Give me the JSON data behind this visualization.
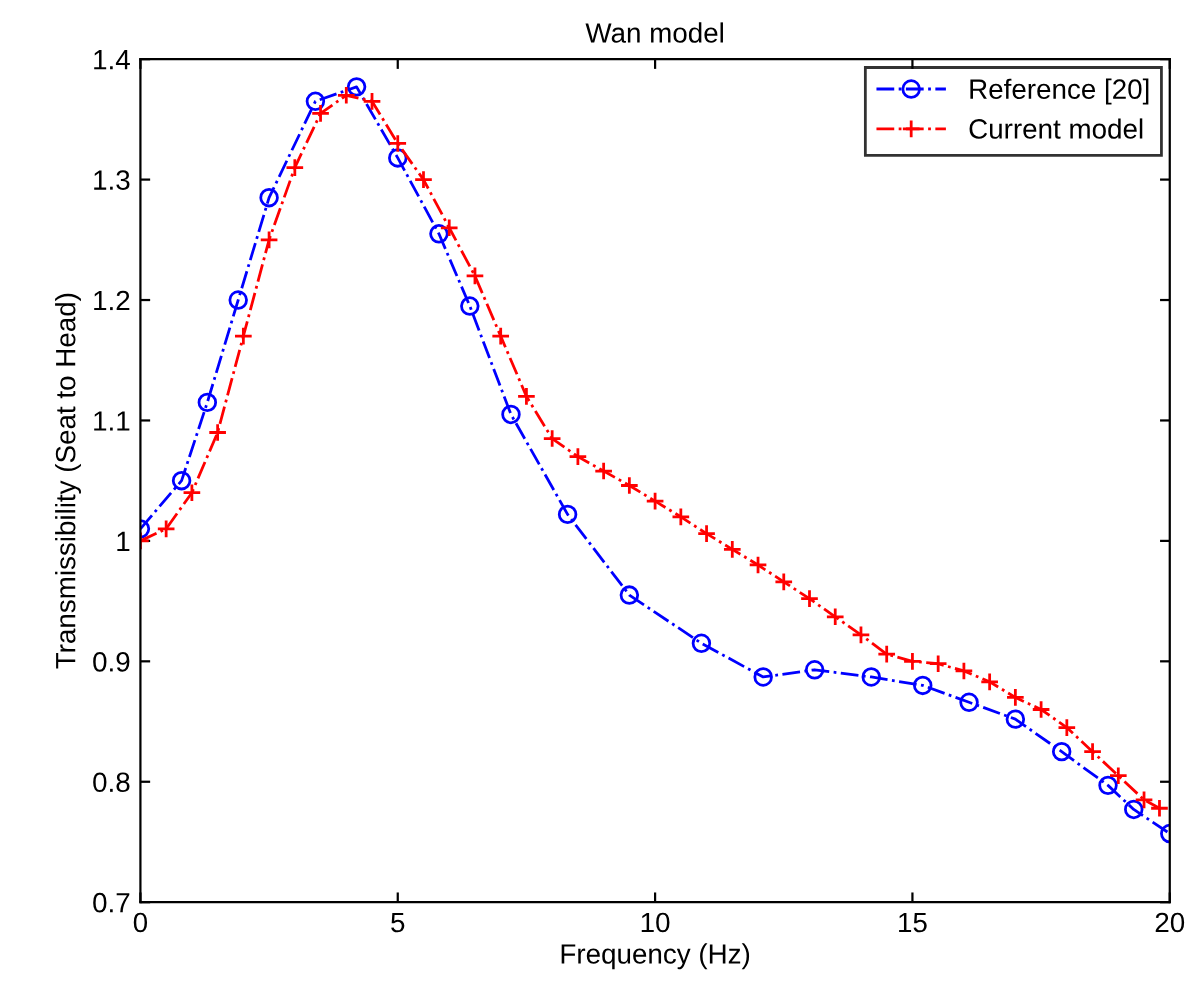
{
  "chart_data": {
    "type": "line",
    "title": "Wan model",
    "xlabel": "Frequency (Hz)",
    "ylabel": "Transmissibility (Seat to Head)",
    "xlim": [
      0,
      20
    ],
    "xticks": [
      0,
      5,
      10,
      15,
      20
    ],
    "ylim": [
      0.7,
      1.4
    ],
    "yticks": [
      0.7,
      0.8,
      0.9,
      1,
      1.1,
      1.2,
      1.3,
      1.4
    ],
    "grid": false,
    "legend": "top right",
    "series": [
      {
        "name": "Reference [20]",
        "color": "#0000ff",
        "marker": "circle",
        "line_style": "dashdot",
        "x": [
          0,
          0.8,
          1.3,
          1.9,
          2.5,
          3.4,
          4.2,
          5.0,
          5.8,
          6.4,
          7.2,
          8.3,
          9.5,
          10.9,
          12.1,
          13.1,
          14.2,
          15.2,
          16.1,
          17.0,
          17.9,
          18.8,
          19.3,
          20
        ],
        "values": [
          1.01,
          1.05,
          1.115,
          1.2,
          1.285,
          1.365,
          1.377,
          1.318,
          1.255,
          1.195,
          1.105,
          1.022,
          0.955,
          0.915,
          0.887,
          0.893,
          0.887,
          0.88,
          0.866,
          0.852,
          0.825,
          0.797,
          0.777,
          0.757
        ]
      },
      {
        "name": "Current model",
        "color": "#ff0000",
        "marker": "cross",
        "line_style": "dashdot",
        "x": [
          0,
          0.5,
          1,
          1.5,
          2,
          2.5,
          3,
          3.5,
          4,
          4.5,
          5,
          5.5,
          6,
          6.5,
          7,
          7.5,
          8,
          8.5,
          9,
          9.5,
          10,
          10.5,
          11,
          11.5,
          12,
          12.5,
          13,
          13.5,
          14,
          14.5,
          15,
          15.5,
          16,
          16.5,
          17,
          17.5,
          18,
          18.5,
          19,
          19.5,
          19.8
        ],
        "values": [
          1.0,
          1.01,
          1.04,
          1.09,
          1.17,
          1.25,
          1.31,
          1.355,
          1.37,
          1.365,
          1.33,
          1.3,
          1.26,
          1.22,
          1.17,
          1.12,
          1.085,
          1.07,
          1.058,
          1.046,
          1.033,
          1.02,
          1.006,
          0.993,
          0.98,
          0.966,
          0.952,
          0.937,
          0.922,
          0.906,
          0.9,
          0.898,
          0.892,
          0.883,
          0.87,
          0.86,
          0.845,
          0.825,
          0.805,
          0.785,
          0.778
        ]
      }
    ]
  }
}
